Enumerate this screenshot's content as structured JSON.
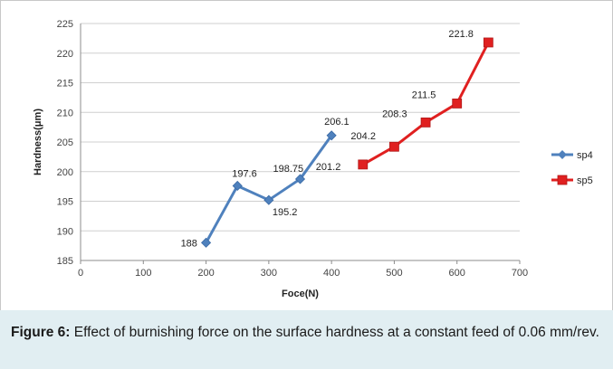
{
  "chart_data": {
    "type": "line",
    "title": "",
    "xlabel": "Foce(N)",
    "ylabel": "Hardness(μm)",
    "xlim": [
      0,
      700
    ],
    "ylim": [
      185,
      225
    ],
    "x_ticks": [
      0,
      100,
      200,
      300,
      400,
      500,
      600,
      700
    ],
    "y_ticks": [
      185,
      190,
      195,
      200,
      205,
      210,
      215,
      220,
      225
    ],
    "grid": "horizontal",
    "legend_position": "right",
    "series": [
      {
        "name": "sp4",
        "color": "#4f81bd",
        "marker": "diamond",
        "x": [
          200,
          250,
          300,
          350,
          400
        ],
        "y": [
          188,
          197.6,
          195.2,
          198.75,
          206.1
        ],
        "labels": [
          "188",
          "197.6",
          "195.2",
          "198.75",
          "206.1"
        ]
      },
      {
        "name": "sp5",
        "color": "#e02020",
        "marker": "square",
        "x": [
          450,
          500,
          550,
          600,
          650
        ],
        "y": [
          201.2,
          204.2,
          208.3,
          211.5,
          221.8
        ],
        "labels": [
          "201.2",
          "204.2",
          "208.3",
          "211.5",
          "221.8"
        ]
      }
    ]
  },
  "caption": {
    "prefix": "Figure 6:",
    "text": " Effect of burnishing force on the surface hardness at a constant feed of 0.06 mm/rev."
  }
}
